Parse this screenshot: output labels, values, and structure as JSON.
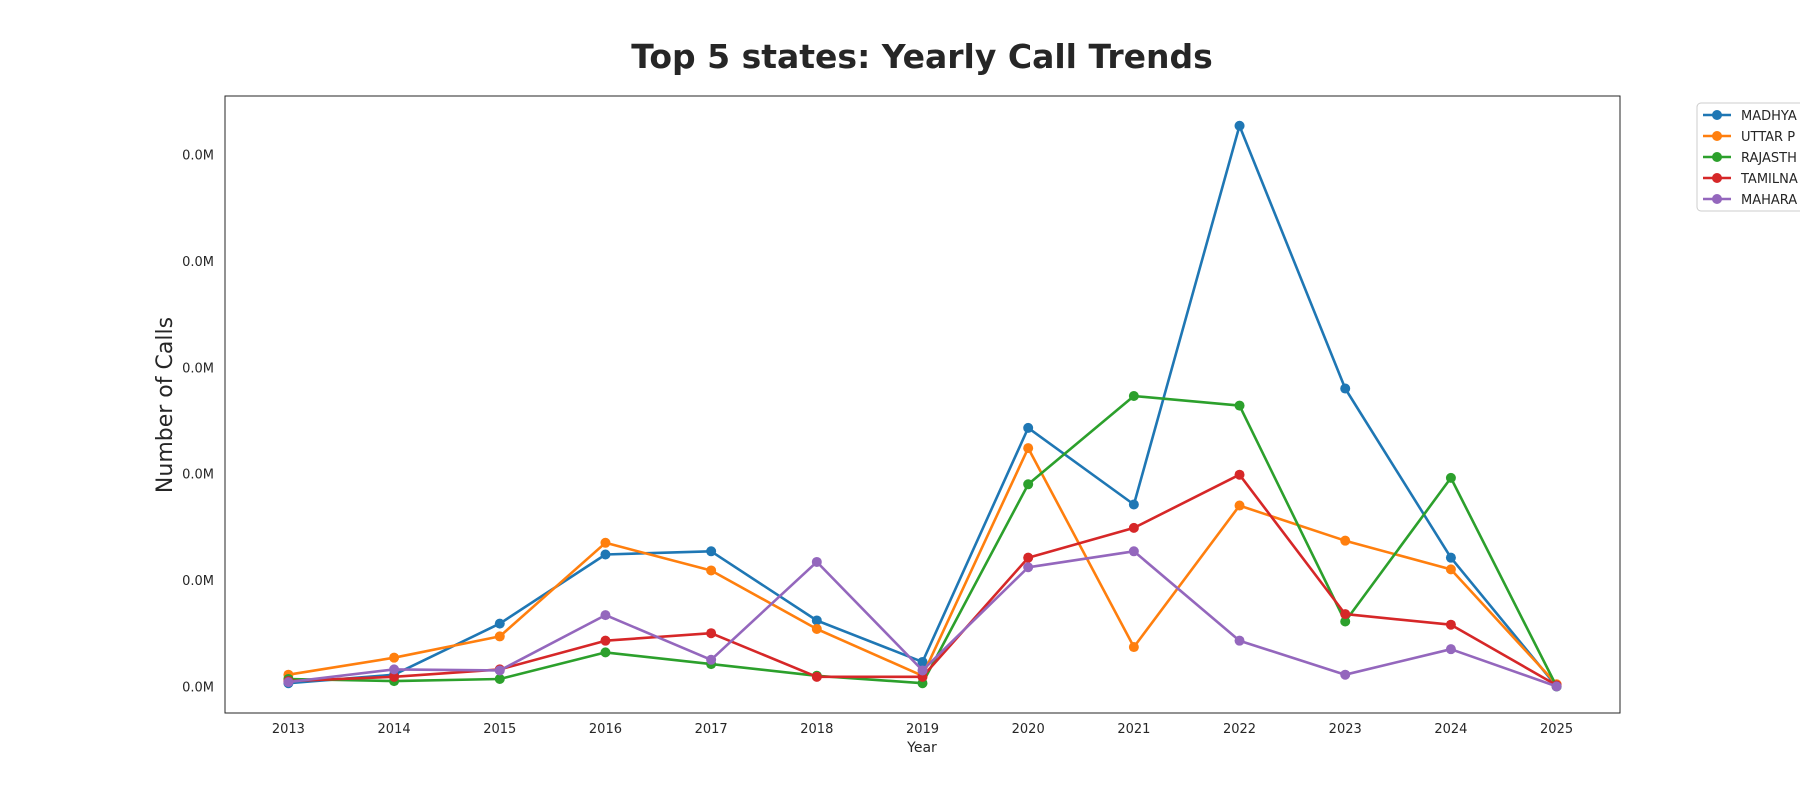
{
  "chart_data": {
    "type": "line",
    "title": "Top 5 states: Yearly Call Trends",
    "xlabel": "Year",
    "ylabel": "Number of Calls",
    "x": [
      2013,
      2014,
      2015,
      2016,
      2017,
      2018,
      2019,
      2020,
      2021,
      2022,
      2023,
      2024,
      2025
    ],
    "xlim": [
      2012.4,
      2025.6
    ],
    "ylim": [
      -250,
      5550
    ],
    "y_ticks": [
      0,
      1000,
      2000,
      3000,
      4000,
      5000
    ],
    "y_tick_labels": [
      "0.0M",
      "0.0M",
      "0.0M",
      "0.0M",
      "0.0M",
      "0.0M"
    ],
    "grid": false,
    "legend_position": "outside-top-right",
    "series": [
      {
        "name": "MADHYA",
        "color": "#1f77b4",
        "values": [
          30,
          110,
          590,
          1240,
          1270,
          620,
          230,
          2430,
          1710,
          5270,
          2800,
          1210,
          0
        ]
      },
      {
        "name": "UTTAR P",
        "color": "#ff7f0e",
        "values": [
          110,
          270,
          470,
          1350,
          1090,
          540,
          100,
          2240,
          370,
          1700,
          1370,
          1100,
          20
        ]
      },
      {
        "name": "RAJASTH",
        "color": "#2ca02c",
        "values": [
          70,
          50,
          70,
          320,
          210,
          100,
          30,
          1900,
          2730,
          2640,
          610,
          1960,
          0
        ]
      },
      {
        "name": "TAMILNA",
        "color": "#d62728",
        "values": [
          50,
          90,
          160,
          430,
          500,
          90,
          90,
          1210,
          1490,
          1990,
          680,
          580,
          10
        ]
      },
      {
        "name": "MAHARA",
        "color": "#9467bd",
        "values": [
          40,
          160,
          150,
          670,
          250,
          1170,
          150,
          1120,
          1270,
          430,
          110,
          350,
          0
        ]
      }
    ]
  }
}
